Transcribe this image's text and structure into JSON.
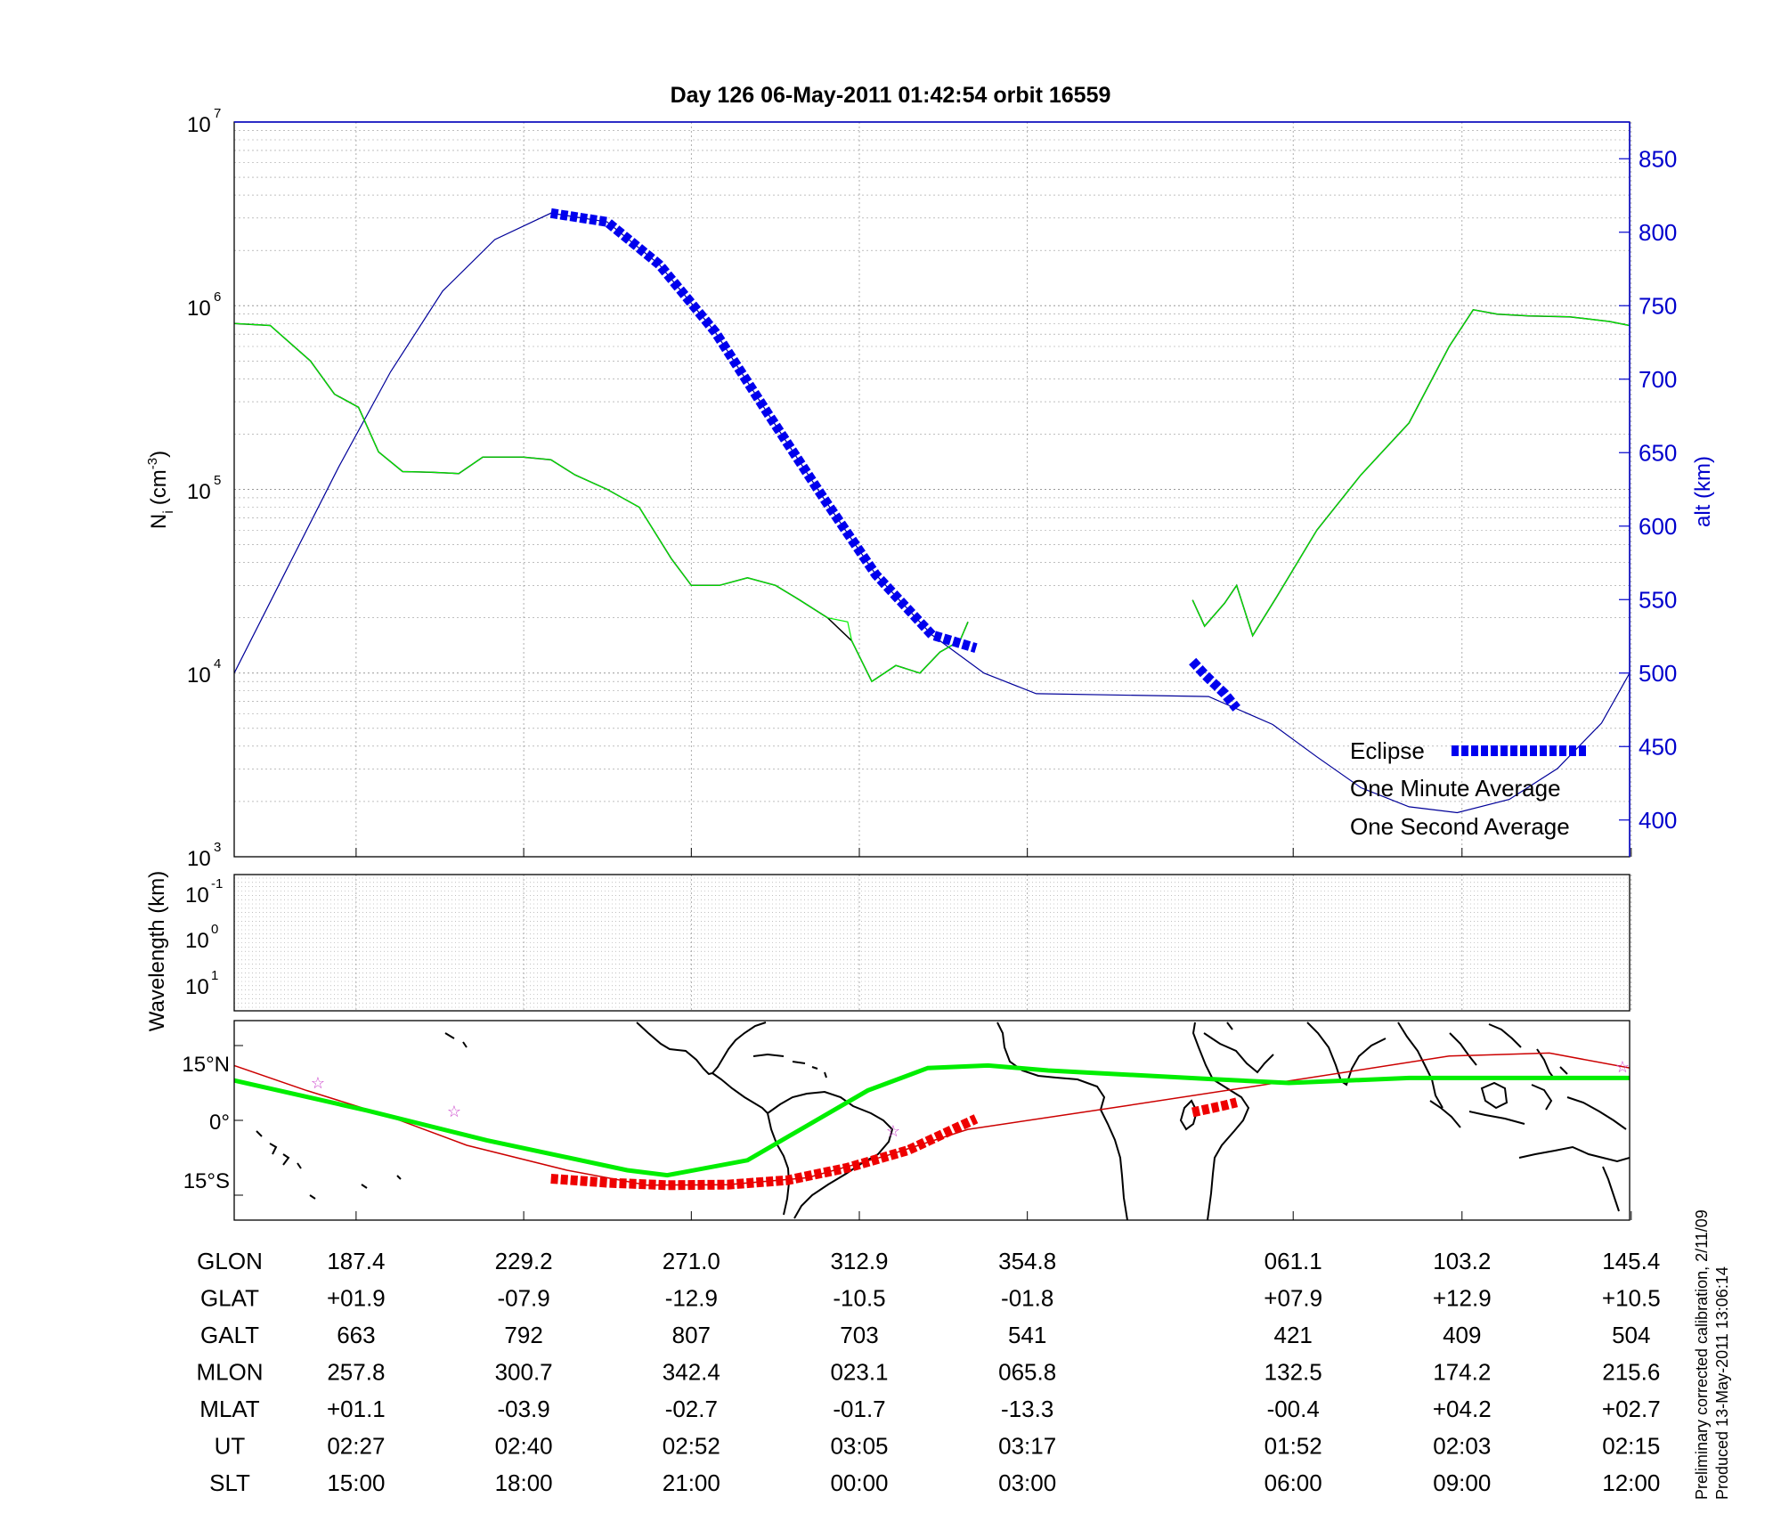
{
  "figure": {
    "title": "Day 126  06-May-2011 01:42:54   orbit 16559",
    "side_note_1": "Preliminary corrected calibration, 2/11/09",
    "side_note_2": "Produced 13-May-2011 13:06:14"
  },
  "panel_density": {
    "ylabel_base": "N",
    "ylabel_sub": "i",
    "ylabel_unit": "(cm",
    "ylabel_exp": "-3",
    "ylabel_close": ")",
    "y2label": "alt (km)",
    "ytick_base": "10",
    "yticks_exp": [
      "3",
      "4",
      "5",
      "6",
      "7"
    ],
    "y2ticks": [
      "400",
      "450",
      "500",
      "550",
      "600",
      "650",
      "700",
      "750",
      "800",
      "850"
    ],
    "legend": {
      "eclipse": "Eclipse",
      "minute": "One Minute Average",
      "second": "One Second Average"
    }
  },
  "panel_wavelength": {
    "ylabel": "Wavelength (km)",
    "ytick_base": "10",
    "yticks_exp": [
      "-1",
      "0",
      "1"
    ]
  },
  "panel_map": {
    "yticks": [
      "15°N",
      "0°",
      "15°S"
    ]
  },
  "table": {
    "rows": [
      {
        "label": "GLON",
        "values": [
          "187.4",
          "229.2",
          "271.0",
          "312.9",
          "354.8",
          "061.1",
          "103.2",
          "145.4"
        ]
      },
      {
        "label": "GLAT",
        "values": [
          "+01.9",
          "-07.9",
          "-12.9",
          "-10.5",
          "-01.8",
          "+07.9",
          "+12.9",
          "+10.5"
        ]
      },
      {
        "label": "GALT",
        "values": [
          "663",
          "792",
          "807",
          "703",
          "541",
          "421",
          "409",
          "504"
        ]
      },
      {
        "label": "MLON",
        "values": [
          "257.8",
          "300.7",
          "342.4",
          "023.1",
          "065.8",
          "132.5",
          "174.2",
          "215.6"
        ]
      },
      {
        "label": "MLAT",
        "values": [
          "+01.1",
          "-03.9",
          "-02.7",
          "-01.7",
          "-13.3",
          "-00.4",
          "+04.2",
          "+02.7"
        ]
      },
      {
        "label": "UT",
        "values": [
          "02:27",
          "02:40",
          "02:52",
          "03:05",
          "03:17",
          "01:52",
          "02:03",
          "02:15"
        ]
      },
      {
        "label": "SLT",
        "values": [
          "15:00",
          "18:00",
          "21:00",
          "00:00",
          "03:00",
          "06:00",
          "09:00",
          "12:00"
        ]
      }
    ]
  },
  "colors": {
    "altitude": "#000099",
    "eclipse": "#0000ee",
    "minute": "#000000",
    "second": "#00ee00",
    "blue_axis": "#0000cc",
    "track": "#cc0000",
    "track_eclipse": "#ee0000",
    "magnetic_equator": "#00ee00",
    "star": "#cc44cc",
    "grid": "#999999"
  },
  "chart_data": [
    {
      "type": "line",
      "x_axis": "GLON (deg)",
      "y_scale": "log",
      "ylim": [
        1000,
        10000000
      ],
      "y2lim": [
        375,
        875
      ],
      "grid": true,
      "legend_position": "bottom-right",
      "series": [
        {
          "name": "One Minute Average",
          "segments": [
            [
              [
                157,
                800000
              ],
              [
                166,
                780000
              ],
              [
                176,
                500000
              ],
              [
                182,
                330000
              ],
              [
                188,
                280000
              ],
              [
                193,
                160000
              ],
              [
                199,
                125000
              ],
              [
                206,
                124000
              ],
              [
                213,
                122000
              ],
              [
                219,
                150000
              ],
              [
                229,
                150000
              ],
              [
                236,
                145000
              ],
              [
                242,
                120000
              ],
              [
                250,
                100000
              ],
              [
                258,
                80000
              ],
              [
                266,
                42000
              ],
              [
                271,
                30000
              ],
              [
                278,
                30000
              ],
              [
                285,
                33000
              ],
              [
                292,
                30000
              ],
              [
                298,
                25000
              ],
              [
                305,
                20000
              ],
              [
                311,
                15000
              ],
              [
                316,
                9000
              ],
              [
                322,
                11000
              ],
              [
                328,
                10000
              ],
              [
                333,
                13000
              ],
              [
                338,
                15000
              ],
              [
                340,
                19000
              ]
            ],
            [
              [
                36,
                25000
              ],
              [
                39,
                18000
              ],
              [
                44,
                24000
              ],
              [
                47,
                30000
              ],
              [
                51,
                16000
              ],
              [
                57,
                26000
              ],
              [
                67,
                60000
              ],
              [
                78,
                120000
              ],
              [
                90,
                230000
              ],
              [
                100,
                600000
              ],
              [
                106,
                950000
              ],
              [
                112,
                900000
              ],
              [
                120,
                880000
              ],
              [
                130,
                870000
              ],
              [
                140,
                820000
              ],
              [
                145,
                780000
              ]
            ]
          ]
        },
        {
          "name": "One Second Average",
          "segments": [
            [
              [
                157,
                800000
              ],
              [
                166,
                780000
              ],
              [
                176,
                500000
              ],
              [
                182,
                330000
              ],
              [
                188,
                280000
              ],
              [
                193,
                160000
              ],
              [
                199,
                125000
              ],
              [
                206,
                124000
              ],
              [
                213,
                122000
              ],
              [
                219,
                150000
              ],
              [
                229,
                150000
              ],
              [
                236,
                145000
              ],
              [
                242,
                120000
              ],
              [
                250,
                100000
              ],
              [
                258,
                80000
              ],
              [
                266,
                42000
              ],
              [
                271,
                30000
              ],
              [
                278,
                30000
              ],
              [
                285,
                33000
              ],
              [
                292,
                30000
              ],
              [
                298,
                25000
              ],
              [
                305,
                20000
              ],
              [
                310,
                19000
              ],
              [
                311,
                15000
              ],
              [
                316,
                9000
              ],
              [
                322,
                11000
              ],
              [
                328,
                10000
              ],
              [
                333,
                13000
              ],
              [
                338,
                15000
              ],
              [
                340,
                19000
              ]
            ],
            [
              [
                36,
                25000
              ],
              [
                39,
                18000
              ],
              [
                44,
                24000
              ],
              [
                47,
                30000
              ],
              [
                51,
                16000
              ],
              [
                57,
                26000
              ],
              [
                67,
                60000
              ],
              [
                78,
                120000
              ],
              [
                90,
                230000
              ],
              [
                100,
                600000
              ],
              [
                106,
                950000
              ],
              [
                112,
                900000
              ],
              [
                120,
                880000
              ],
              [
                130,
                870000
              ],
              [
                140,
                820000
              ],
              [
                145,
                780000
              ]
            ]
          ]
        },
        {
          "name": "alt (km)",
          "axis": "right",
          "points": [
            [
              157,
              500
            ],
            [
              170,
              570
            ],
            [
              183,
              640
            ],
            [
              196,
              705
            ],
            [
              209,
              760
            ],
            [
              222,
              795
            ],
            [
              236,
              813
            ],
            [
              250,
              807
            ],
            [
              263,
              778
            ],
            [
              277,
              732
            ],
            [
              290,
              677
            ],
            [
              304,
              619
            ],
            [
              317,
              567
            ],
            [
              331,
              526
            ],
            [
              344,
              500
            ],
            [
              357,
              486
            ],
            [
              40,
              484
            ],
            [
              56,
              465
            ],
            [
              67,
              443
            ],
            [
              78,
              422
            ],
            [
              90,
              409
            ],
            [
              102,
              405
            ],
            [
              115,
              414
            ],
            [
              127,
              435
            ],
            [
              138,
              466
            ],
            [
              145,
              500
            ]
          ]
        },
        {
          "name": "Eclipse",
          "axis": "right",
          "segments": [
            [
              [
                236,
                813
              ],
              [
                250,
                807
              ],
              [
                263,
                778
              ],
              [
                277,
                732
              ],
              [
                290,
                677
              ],
              [
                304,
                619
              ],
              [
                317,
                567
              ],
              [
                331,
                526
              ],
              [
                342,
                517
              ]
            ],
            [
              [
                36,
                508
              ],
              [
                39,
                499
              ],
              [
                44,
                486
              ],
              [
                47,
                476
              ]
            ]
          ]
        }
      ]
    },
    {
      "type": "line",
      "x_axis": "GLON (deg)",
      "ylim": [
        -20,
        20
      ],
      "grid": true,
      "series": [
        {
          "name": "satellite track",
          "points": [
            [
              157,
              11
            ],
            [
              175,
              6
            ],
            [
              195,
              1
            ],
            [
              215,
              -5
            ],
            [
              240,
              -10
            ],
            [
              260,
              -13
            ],
            [
              280,
              -12.9
            ],
            [
              300,
              -11.5
            ],
            [
              320,
              -7
            ],
            [
              340,
              -1.8
            ],
            [
              20,
              3
            ],
            [
              60,
              7.9
            ],
            [
              100,
              12.9
            ],
            [
              125,
              13.5
            ],
            [
              145,
              10.5
            ]
          ]
        },
        {
          "name": "magnetic equator",
          "points": [
            [
              157,
              8
            ],
            [
              190,
              2
            ],
            [
              220,
              -4
            ],
            [
              255,
              -10
            ],
            [
              265,
              -11
            ],
            [
              285,
              -8
            ],
            [
              300,
              -1
            ],
            [
              315,
              6
            ],
            [
              330,
              10.5
            ],
            [
              345,
              11
            ],
            [
              360,
              10
            ],
            [
              40,
              8.3
            ],
            [
              60,
              7.5
            ],
            [
              90,
              8.5
            ],
            [
              145,
              8.5
            ]
          ]
        },
        {
          "name": "Eclipse",
          "segments": [
            [
              [
                236,
                -11.7
              ],
              [
                250,
                -12.5
              ],
              [
                265,
                -13
              ],
              [
                280,
                -12.9
              ],
              [
                295,
                -12
              ],
              [
                310,
                -9.5
              ],
              [
                325,
                -6
              ],
              [
                342,
                0.3
              ]
            ],
            [
              [
                36,
                1.6
              ],
              [
                40,
                2.3
              ],
              [
                44,
                3
              ],
              [
                47,
                3.6
              ]
            ]
          ]
        }
      ]
    }
  ]
}
